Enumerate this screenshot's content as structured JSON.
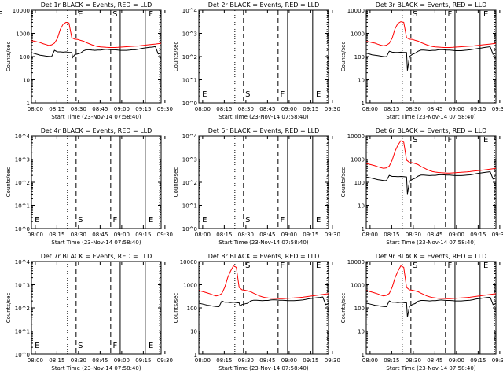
{
  "figure": {
    "xlabel": "Start Time (23-Nov-14 07:58:40)",
    "ylabel": "Counts/sec",
    "x_tick_labels": [
      "08:00",
      "08:15",
      "08:30",
      "08:45",
      "09:00",
      "09:15",
      "09:30"
    ],
    "x_range_min": [
      0,
      45
    ],
    "ylim": [
      1,
      10000
    ],
    "y_scale": "log",
    "y_tick_labels_numeric": [
      "1",
      "10",
      "100",
      "1000",
      "10000"
    ],
    "y_tick_labels_exp": [
      "10^0",
      "10^1",
      "10^2",
      "10^3",
      "10^4"
    ],
    "event_lines": [
      {
        "label": "E",
        "x_min": 12.5,
        "style": "dotted"
      },
      {
        "label": "S",
        "x_min": 15.5,
        "style": "dashed"
      },
      {
        "label": "F",
        "x_min": 27.5,
        "style": "dashed"
      },
      {
        "label": "E",
        "x_min": 30.8,
        "style": "solid"
      },
      {
        "label": "S",
        "x_min": 39.5,
        "style": "solid"
      },
      {
        "label": "E",
        "x_min": 44.5,
        "style": "dotted"
      }
    ],
    "colors": {
      "events": "#000000",
      "lld": "#ff0000",
      "axes": "#000000"
    }
  },
  "chart_data": [
    {
      "type": "line",
      "title": "Det 1r BLACK = Events, RED = LLD",
      "detector": "1r",
      "has_data": true,
      "markers": [
        "E",
        "S",
        "F",
        "E"
      ],
      "series": [
        {
          "name": "Events",
          "color": "#000000",
          "x": [
            0,
            1,
            2,
            3,
            4,
            5,
            6,
            7,
            8,
            9,
            10,
            11,
            12,
            13,
            14,
            14.3,
            15,
            16,
            17,
            18,
            19,
            20,
            21,
            22,
            23,
            24,
            25,
            26,
            27,
            28,
            29,
            30,
            31,
            32,
            33,
            34,
            35,
            36,
            37,
            38,
            39,
            40,
            41,
            42,
            43,
            44,
            45
          ],
          "y": [
            150,
            135,
            125,
            115,
            110,
            105,
            102,
            100,
            185,
            160,
            160,
            155,
            160,
            150,
            150,
            90,
            120,
            130,
            140,
            175,
            195,
            195,
            190,
            185,
            190,
            190,
            200,
            205,
            200,
            195,
            195,
            190,
            185,
            185,
            185,
            190,
            195,
            195,
            205,
            220,
            230,
            240,
            250,
            255,
            270,
            130,
            140
          ]
        },
        {
          "name": "LLD",
          "color": "#ff0000",
          "x": [
            0,
            1,
            2,
            3,
            4,
            5,
            6,
            7,
            8,
            9,
            10,
            11,
            12,
            13,
            14,
            15,
            16,
            17,
            18,
            19,
            20,
            21,
            22,
            23,
            24,
            25,
            26,
            27,
            28,
            29,
            30,
            31,
            32,
            33,
            34,
            35,
            36,
            37,
            38,
            39,
            40,
            41,
            42,
            43,
            44,
            45
          ],
          "y": [
            480,
            460,
            430,
            400,
            360,
            330,
            300,
            320,
            380,
            600,
            1500,
            2500,
            3000,
            2800,
            650,
            560,
            550,
            500,
            460,
            400,
            360,
            320,
            290,
            270,
            260,
            255,
            250,
            245,
            245,
            245,
            250,
            255,
            260,
            265,
            270,
            275,
            280,
            285,
            295,
            305,
            315,
            325,
            335,
            345,
            360,
            375
          ]
        }
      ]
    },
    {
      "type": "line",
      "title": "Det 2r BLACK = Events, RED = LLD",
      "detector": "2r",
      "has_data": false,
      "markers": [
        "E",
        "S",
        "F",
        "E"
      ],
      "series": []
    },
    {
      "type": "line",
      "title": "Det 3r BLACK = Events, RED = LLD",
      "detector": "3r",
      "has_data": true,
      "markers": [
        "S",
        "F",
        "E"
      ],
      "series": [
        {
          "name": "Events",
          "color": "#000000",
          "x": [
            0,
            1,
            2,
            3,
            4,
            5,
            6,
            7,
            8,
            9,
            10,
            11,
            12,
            13,
            14,
            14.3,
            15,
            16,
            17,
            18,
            19,
            20,
            21,
            22,
            23,
            24,
            25,
            26,
            27,
            28,
            29,
            30,
            31,
            32,
            33,
            34,
            35,
            36,
            37,
            38,
            39,
            40,
            41,
            42,
            43,
            44,
            45
          ],
          "y": [
            140,
            130,
            120,
            115,
            110,
            105,
            100,
            98,
            170,
            155,
            150,
            150,
            155,
            150,
            150,
            25,
            100,
            125,
            140,
            170,
            190,
            190,
            185,
            180,
            185,
            185,
            195,
            200,
            195,
            190,
            190,
            185,
            180,
            180,
            180,
            185,
            190,
            195,
            205,
            215,
            225,
            235,
            245,
            255,
            265,
            125,
            140
          ]
        },
        {
          "name": "LLD",
          "color": "#ff0000",
          "x": [
            0,
            1,
            2,
            3,
            4,
            5,
            6,
            7,
            8,
            9,
            10,
            11,
            12,
            13,
            14,
            15,
            16,
            17,
            18,
            19,
            20,
            21,
            22,
            23,
            24,
            25,
            26,
            27,
            28,
            29,
            30,
            31,
            32,
            33,
            34,
            35,
            36,
            37,
            38,
            39,
            40,
            41,
            42,
            43,
            44,
            45
          ],
          "y": [
            450,
            430,
            400,
            380,
            340,
            310,
            290,
            310,
            370,
            620,
            1600,
            2700,
            3200,
            3000,
            650,
            560,
            550,
            500,
            460,
            400,
            360,
            320,
            290,
            270,
            260,
            255,
            250,
            245,
            245,
            245,
            250,
            255,
            260,
            265,
            270,
            275,
            280,
            285,
            295,
            305,
            315,
            325,
            335,
            345,
            360,
            375
          ]
        }
      ]
    },
    {
      "type": "line",
      "title": "Det 4r BLACK = Events, RED = LLD",
      "detector": "4r",
      "has_data": false,
      "markers": [
        "E",
        "S",
        "F",
        "E"
      ],
      "series": []
    },
    {
      "type": "line",
      "title": "Det 5r BLACK = Events, RED = LLD",
      "detector": "5r",
      "has_data": false,
      "markers": [
        "E",
        "S",
        "F",
        "E"
      ],
      "series": []
    },
    {
      "type": "line",
      "title": "Det 6r BLACK = Events, RED = LLD",
      "detector": "6r",
      "has_data": true,
      "markers": [
        "S",
        "F",
        "E"
      ],
      "series": [
        {
          "name": "Events",
          "color": "#000000",
          "x": [
            0,
            1,
            2,
            3,
            4,
            5,
            6,
            7,
            8,
            9,
            10,
            11,
            12,
            13,
            14,
            14.3,
            15,
            16,
            17,
            18,
            19,
            20,
            21,
            22,
            23,
            24,
            25,
            26,
            27,
            28,
            29,
            30,
            31,
            32,
            33,
            34,
            35,
            36,
            37,
            38,
            39,
            40,
            41,
            42,
            43,
            44,
            45
          ],
          "y": [
            170,
            160,
            150,
            140,
            130,
            125,
            120,
            118,
            200,
            180,
            180,
            175,
            180,
            175,
            170,
            30,
            110,
            135,
            150,
            185,
            205,
            205,
            200,
            195,
            200,
            200,
            210,
            215,
            210,
            205,
            205,
            200,
            195,
            195,
            195,
            200,
            205,
            210,
            220,
            235,
            245,
            255,
            265,
            275,
            285,
            140,
            155
          ]
        },
        {
          "name": "LLD",
          "color": "#ff0000",
          "x": [
            0,
            1,
            2,
            3,
            4,
            5,
            6,
            7,
            8,
            9,
            10,
            11,
            12,
            13,
            14,
            15,
            16,
            17,
            18,
            19,
            20,
            21,
            22,
            23,
            24,
            25,
            26,
            27,
            28,
            29,
            30,
            31,
            32,
            33,
            34,
            35,
            36,
            37,
            38,
            39,
            40,
            41,
            42,
            43,
            44,
            45
          ],
          "y": [
            650,
            600,
            560,
            520,
            470,
            430,
            400,
            420,
            500,
            900,
            2200,
            4000,
            6200,
            5400,
            900,
            720,
            700,
            640,
            580,
            480,
            420,
            360,
            320,
            290,
            275,
            265,
            260,
            255,
            250,
            250,
            255,
            260,
            265,
            270,
            275,
            280,
            290,
            300,
            310,
            320,
            330,
            340,
            355,
            370,
            385,
            400
          ]
        }
      ]
    },
    {
      "type": "line",
      "title": "Det 7r BLACK = Events, RED = LLD",
      "detector": "7r",
      "has_data": false,
      "markers": [
        "E",
        "S",
        "F",
        "E"
      ],
      "series": []
    },
    {
      "type": "line",
      "title": "Det 8r BLACK = Events, RED = LLD",
      "detector": "8r",
      "has_data": true,
      "markers": [
        "S",
        "F",
        "E"
      ],
      "series": [
        {
          "name": "Events",
          "color": "#000000",
          "x": [
            0,
            1,
            2,
            3,
            4,
            5,
            6,
            7,
            8,
            9,
            10,
            11,
            12,
            13,
            14,
            14.3,
            15,
            16,
            17,
            18,
            19,
            20,
            21,
            22,
            23,
            24,
            25,
            26,
            27,
            28,
            29,
            30,
            31,
            32,
            33,
            34,
            35,
            36,
            37,
            38,
            39,
            40,
            41,
            42,
            43,
            44,
            45
          ],
          "y": [
            160,
            150,
            140,
            130,
            125,
            120,
            115,
            112,
            200,
            175,
            175,
            170,
            175,
            170,
            165,
            120,
            140,
            150,
            160,
            200,
            215,
            215,
            210,
            205,
            210,
            210,
            220,
            225,
            220,
            215,
            215,
            210,
            205,
            205,
            205,
            210,
            215,
            220,
            230,
            245,
            255,
            265,
            275,
            285,
            295,
            140,
            155
          ]
        },
        {
          "name": "LLD",
          "color": "#ff0000",
          "x": [
            0,
            1,
            2,
            3,
            4,
            5,
            6,
            7,
            8,
            9,
            10,
            11,
            12,
            13,
            14,
            15,
            16,
            17,
            18,
            19,
            20,
            21,
            22,
            23,
            24,
            25,
            26,
            27,
            28,
            29,
            30,
            31,
            32,
            33,
            34,
            35,
            36,
            37,
            38,
            39,
            40,
            41,
            42,
            43,
            44,
            45
          ],
          "y": [
            560,
            520,
            480,
            440,
            400,
            360,
            330,
            350,
            420,
            780,
            2000,
            3800,
            6500,
            5600,
            760,
            600,
            580,
            540,
            500,
            430,
            380,
            330,
            300,
            280,
            270,
            262,
            258,
            255,
            252,
            252,
            255,
            260,
            265,
            270,
            275,
            282,
            290,
            300,
            312,
            325,
            338,
            350,
            365,
            380,
            395,
            410
          ]
        }
      ]
    },
    {
      "type": "line",
      "title": "Det 9r BLACK = Events, RED = LLD",
      "detector": "9r",
      "has_data": true,
      "markers": [
        "S",
        "F",
        "E"
      ],
      "series": [
        {
          "name": "Events",
          "color": "#000000",
          "x": [
            0,
            1,
            2,
            3,
            4,
            5,
            6,
            7,
            8,
            9,
            10,
            11,
            12,
            13,
            14,
            14.3,
            15,
            16,
            17,
            18,
            19,
            20,
            21,
            22,
            23,
            24,
            25,
            26,
            27,
            28,
            29,
            30,
            31,
            32,
            33,
            34,
            35,
            36,
            37,
            38,
            39,
            40,
            41,
            42,
            43,
            44,
            45
          ],
          "y": [
            160,
            150,
            140,
            130,
            125,
            120,
            115,
            112,
            200,
            175,
            175,
            170,
            175,
            170,
            165,
            40,
            115,
            140,
            155,
            195,
            210,
            210,
            205,
            200,
            205,
            205,
            215,
            220,
            215,
            210,
            210,
            205,
            200,
            200,
            200,
            205,
            210,
            215,
            225,
            240,
            250,
            260,
            270,
            280,
            290,
            140,
            155
          ]
        },
        {
          "name": "LLD",
          "color": "#ff0000",
          "x": [
            0,
            1,
            2,
            3,
            4,
            5,
            6,
            7,
            8,
            9,
            10,
            11,
            12,
            13,
            14,
            15,
            16,
            17,
            18,
            19,
            20,
            21,
            22,
            23,
            24,
            25,
            26,
            27,
            28,
            29,
            30,
            31,
            32,
            33,
            34,
            35,
            36,
            37,
            38,
            39,
            40,
            41,
            42,
            43,
            44,
            45
          ],
          "y": [
            560,
            520,
            480,
            440,
            400,
            360,
            330,
            350,
            420,
            780,
            2000,
            3800,
            6500,
            5600,
            760,
            600,
            580,
            540,
            500,
            430,
            380,
            330,
            300,
            280,
            270,
            262,
            258,
            255,
            252,
            252,
            255,
            260,
            265,
            270,
            275,
            282,
            290,
            300,
            312,
            325,
            338,
            350,
            365,
            380,
            395,
            410
          ]
        }
      ]
    }
  ]
}
